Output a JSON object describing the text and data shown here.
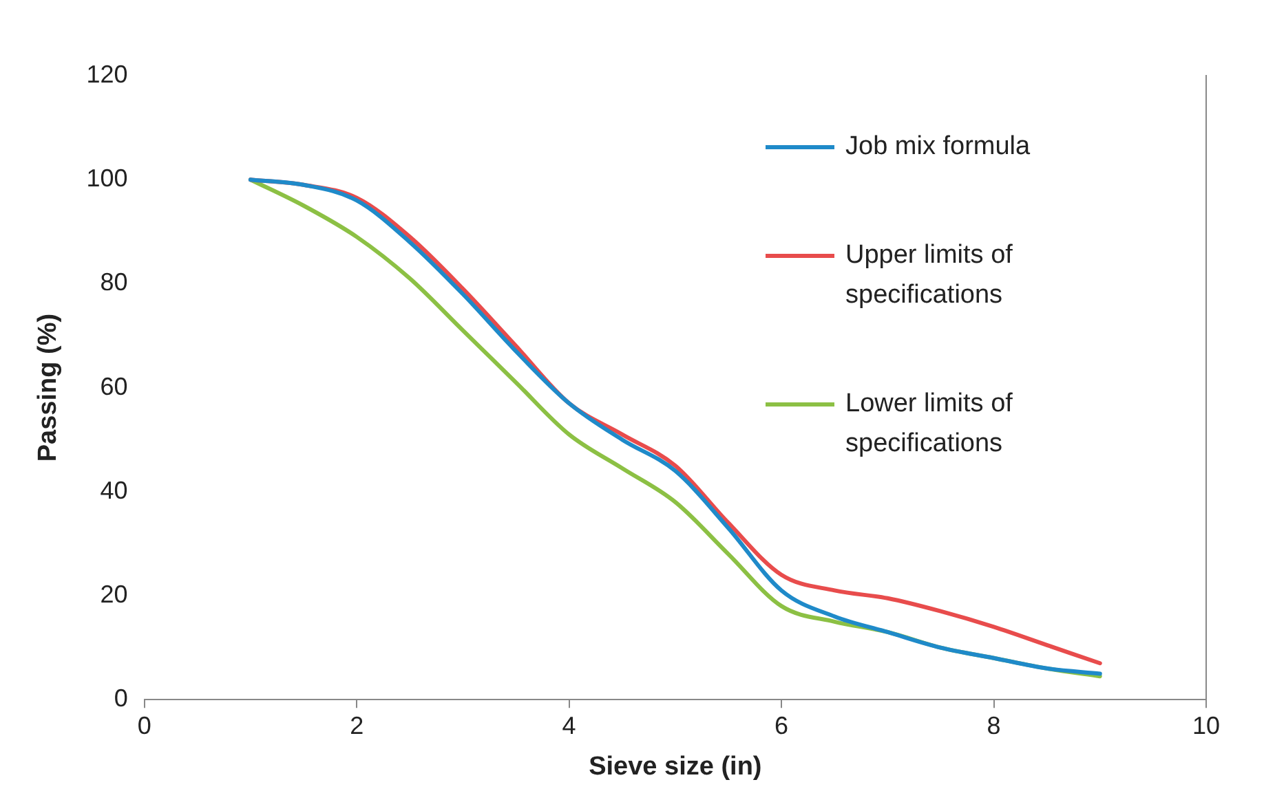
{
  "chart_data": {
    "type": "line",
    "xlabel": "Sieve size (in)",
    "ylabel": "Passing (%)",
    "xlim": [
      0,
      10
    ],
    "xticks": [
      0,
      2,
      4,
      6,
      8,
      10
    ],
    "ylim": [
      0,
      120
    ],
    "yticks": [
      0,
      20,
      40,
      60,
      80,
      100,
      120
    ],
    "grid": false,
    "legend": "top right",
    "marker": "none",
    "line_style": "solid",
    "x": [
      1,
      1.5,
      2,
      2.5,
      3,
      3.5,
      4,
      4.5,
      5,
      5.5,
      6,
      6.5,
      7,
      7.5,
      8,
      8.5,
      9
    ],
    "series": [
      {
        "name": "Job mix formula",
        "color": "#1f8ac9",
        "values": [
          100,
          99,
          96,
          88,
          78,
          67,
          57,
          50,
          44,
          33,
          21,
          16,
          13,
          10,
          8,
          6,
          5
        ]
      },
      {
        "name": "Upper limits of specifications",
        "color": "#e84c4c",
        "values": [
          100,
          99,
          96.5,
          89,
          79,
          68,
          57,
          51,
          45,
          34,
          24,
          21,
          19.5,
          17,
          14,
          10.5,
          7
        ]
      },
      {
        "name": "Lower limits of specifications",
        "color": "#8cc044",
        "values": [
          100,
          95,
          89,
          81,
          71,
          61,
          51,
          44.5,
          38,
          28,
          18,
          15,
          13,
          10,
          8,
          6,
          4.5
        ]
      }
    ]
  }
}
